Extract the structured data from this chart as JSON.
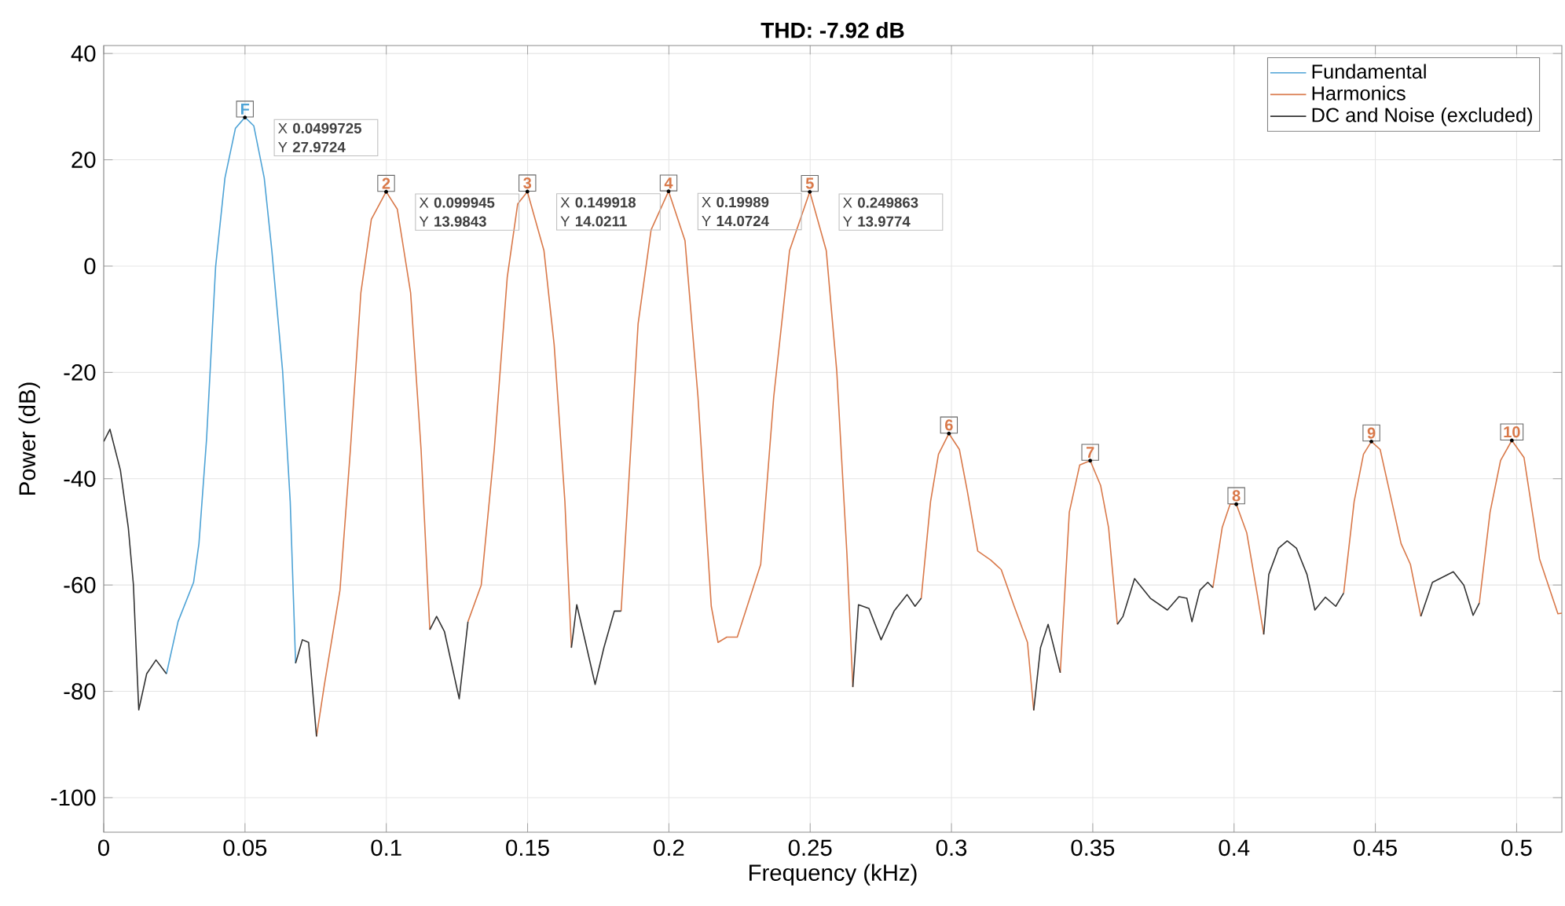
{
  "chart_data": {
    "type": "line",
    "title": "THD:  -7.92 dB",
    "xlabel": "Frequency (kHz)",
    "ylabel": "Power (dB)",
    "xlim": [
      0,
      0.516
    ],
    "ylim": [
      -106.5,
      41.5
    ],
    "xticks": [
      0,
      0.05,
      0.1,
      0.15,
      0.2,
      0.25,
      0.3,
      0.35,
      0.4,
      0.45,
      0.5
    ],
    "yticks": [
      -100,
      -80,
      -60,
      -40,
      -20,
      0,
      20,
      40
    ],
    "grid": true,
    "legend": "top right",
    "marker": "none",
    "line_style": "solid",
    "series": [
      {
        "name": "Fundamental",
        "color": "#4ea3d6",
        "x": [
          0.0222,
          0.0263,
          0.0318,
          0.0337,
          0.0364,
          0.0396,
          0.0429,
          0.0466,
          0.05,
          0.0531,
          0.0568,
          0.0595,
          0.0633,
          0.066,
          0.0679
        ],
        "values": [
          -76.7,
          -66.9,
          -59.5,
          -52.2,
          -32.5,
          -0.1,
          16.6,
          25.9,
          28,
          26.4,
          16.6,
          2.9,
          -19.7,
          -44.3,
          -74.7
        ]
      },
      {
        "name": "Harmonics",
        "color": "#d9794a",
        "x": [
          0.0753,
          0.0781,
          0.0836,
          0.0873,
          0.091,
          0.0947,
          0.099945,
          0.1039,
          0.1086,
          0.1123,
          0.1154,
          null,
          0.1289,
          0.1336,
          0.1382,
          0.1428,
          0.1465,
          0.149918,
          0.1558,
          0.1594,
          0.1632,
          0.1655,
          null,
          0.1831,
          0.1854,
          0.1891,
          0.1937,
          0.19989,
          0.2057,
          0.2103,
          0.215,
          0.2174,
          0.2205,
          0.2242,
          0.2325,
          0.2371,
          0.2427,
          0.249863,
          0.2557,
          0.2594,
          0.263,
          0.2651,
          null,
          0.2893,
          0.2926,
          0.2954,
          0.2991,
          0.3028,
          0.3056,
          0.3093,
          0.3139,
          0.3176,
          0.3222,
          0.3269,
          0.3291,
          null,
          0.3385,
          0.3417,
          0.3454,
          0.3491,
          0.3528,
          0.3556,
          0.3587,
          null,
          0.3925,
          0.3958,
          0.3986,
          0.4008,
          0.4045,
          0.4083,
          0.4105,
          null,
          0.4388,
          0.4425,
          0.4458,
          0.4486,
          0.4517,
          0.4554,
          0.4591,
          0.4624,
          0.4661,
          null,
          0.4868,
          0.4906,
          0.4943,
          0.4983,
          0.5026,
          0.5081,
          0.5146,
          0.516
        ],
        "values": [
          -88.5,
          -78.7,
          -61,
          -34.5,
          -5,
          8.8,
          14,
          10.7,
          -5,
          -34.5,
          -68.4,
          null,
          -66.9,
          -60,
          -34.5,
          -2.1,
          11.7,
          14,
          2.9,
          -14.8,
          -44.3,
          -71.8,
          null,
          -64.9,
          -44.3,
          -10.9,
          6.8,
          14.1,
          4.8,
          -24.6,
          -64,
          -70.8,
          -69.8,
          -69.8,
          -56.1,
          -24.6,
          2.9,
          14,
          2.9,
          -19.7,
          -54.1,
          -79.2,
          null,
          -62.5,
          -44.3,
          -35.4,
          -31.5,
          -34.5,
          -42.3,
          -53.6,
          -55.3,
          -57.1,
          -64,
          -70.8,
          -83.6,
          null,
          -76.5,
          -46.3,
          -37.4,
          -36.6,
          -41.3,
          -49.2,
          -67.4,
          null,
          -60.5,
          -49.2,
          -44.8,
          -44.8,
          -50.2,
          -62,
          -69.3,
          null,
          -61.5,
          -44.3,
          -35.4,
          -33,
          -34.5,
          -43.3,
          -52.2,
          -56.1,
          -65.9,
          null,
          -63.4,
          -46.3,
          -36.6,
          -32.8,
          -36,
          -55.1,
          -65.4,
          -65.3
        ]
      },
      {
        "name": "DC and Noise (excluded)",
        "color": "#333333",
        "x": [
          0,
          0.0022,
          0.0059,
          0.0087,
          0.0105,
          0.0124,
          0.0152,
          0.0185,
          0.0222,
          null,
          0.0679,
          0.0703,
          0.0725,
          0.0753,
          null,
          0.1154,
          0.1178,
          0.1206,
          0.1258,
          0.1289,
          null,
          0.1655,
          0.1674,
          0.1705,
          0.1739,
          0.177,
          0.1807,
          0.1831,
          null,
          0.2651,
          0.2671,
          0.2708,
          0.2751,
          0.2797,
          0.2843,
          0.2871,
          0.2893,
          null,
          0.3291,
          0.3315,
          0.3342,
          0.3385,
          null,
          0.3587,
          0.3607,
          0.3648,
          0.3704,
          0.3764,
          0.3805,
          0.3833,
          0.3851,
          0.3879,
          0.3907,
          0.3925,
          null,
          0.4105,
          0.4123,
          0.4157,
          0.4188,
          0.4221,
          0.4258,
          0.4286,
          0.4323,
          0.436,
          0.4388,
          null,
          0.4661,
          0.4702,
          0.4776,
          0.4813,
          0.4846,
          0.4868
        ],
        "values": [
          -33,
          -30.7,
          -38.4,
          -49.2,
          -59.9,
          -83.5,
          -76.7,
          -74.1,
          -76.7,
          null,
          -74.7,
          -70.3,
          -70.8,
          -88.5,
          null,
          -68.4,
          -65.9,
          -68.8,
          -81.4,
          -66.9,
          null,
          -71.8,
          -63.7,
          -70.8,
          -78.7,
          -71.8,
          -64.9,
          -64.9,
          null,
          -79.2,
          -63.7,
          -64.4,
          -70.3,
          -64.9,
          -61.8,
          -64,
          -62.5,
          null,
          -83.6,
          -71.8,
          -67.4,
          -76.5,
          null,
          -67.4,
          -65.9,
          -58.8,
          -62.5,
          -64.7,
          -62.2,
          -62.5,
          -66.9,
          -61,
          -59.5,
          -60.5,
          null,
          -69.3,
          -58,
          -53.1,
          -51.7,
          -53.1,
          -58,
          -64.7,
          -62.3,
          -64,
          -61.5,
          null,
          -65.9,
          -59.5,
          -57.5,
          -60,
          -65.7,
          -63.4
        ]
      }
    ],
    "annotations": [
      {
        "text": "F",
        "x": 0.0499725,
        "y": 27.9724
      },
      {
        "text": "2",
        "x": 0.099945,
        "y": 13.9843
      },
      {
        "text": "3",
        "x": 0.149918,
        "y": 14.0211
      },
      {
        "text": "4",
        "x": 0.19989,
        "y": 14.0724
      },
      {
        "text": "5",
        "x": 0.249863,
        "y": 13.9774
      },
      {
        "text": "6",
        "x": 0.2991,
        "y": -31.5
      },
      {
        "text": "7",
        "x": 0.3491,
        "y": -36.6
      },
      {
        "text": "8",
        "x": 0.4008,
        "y": -44.8
      },
      {
        "text": "9",
        "x": 0.4486,
        "y": -33
      },
      {
        "text": "10",
        "x": 0.4983,
        "y": -32.8
      },
      {
        "text": "X **0.0499725**",
        "x": 0.0499725,
        "y": 27.9724
      },
      {
        "text": "Y **27.9724**",
        "x": 0.0499725,
        "y": 27.9724
      },
      {
        "text": "X **0.099945**",
        "x": 0.099945,
        "y": 13.9843
      },
      {
        "text": "Y **13.9843**",
        "x": 0.099945,
        "y": 13.9843
      },
      {
        "text": "X **0.149918**",
        "x": 0.149918,
        "y": 14.0211
      },
      {
        "text": "Y **14.0211**",
        "x": 0.149918,
        "y": 14.0211
      },
      {
        "text": "X **0.19989**",
        "x": 0.19989,
        "y": 14.0724
      },
      {
        "text": "Y **14.0724**",
        "x": 0.19989,
        "y": 14.0724
      },
      {
        "text": "X **0.249863**",
        "x": 0.249863,
        "y": 13.9774
      },
      {
        "text": "Y **13.9774**",
        "x": 0.249863,
        "y": 13.9774
      }
    ]
  }
}
